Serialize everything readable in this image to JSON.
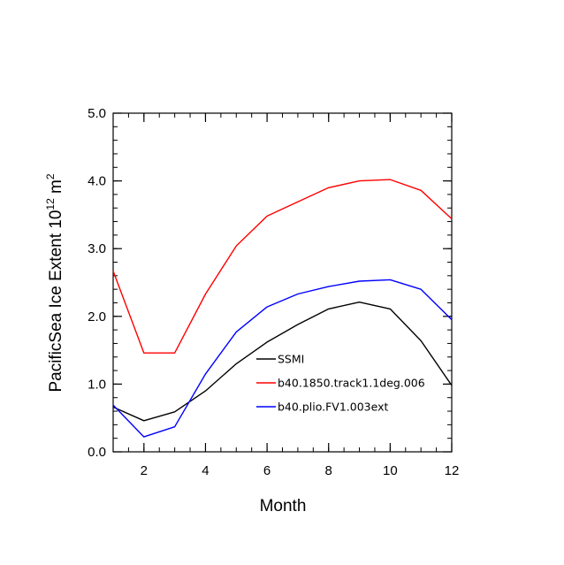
{
  "chart_data": {
    "type": "line",
    "xlabel": "Month",
    "ylabel": "PacificSea Ice Extent 10",
    "ylabel_exp": "12",
    "ylabel_unit": " m",
    "ylabel_unit_exp": "2",
    "xlim": [
      1,
      12
    ],
    "ylim": [
      0,
      5
    ],
    "xticks": [
      2,
      4,
      6,
      8,
      10,
      12
    ],
    "xtick_labels": [
      "2",
      "4",
      "6",
      "8",
      "10",
      "12"
    ],
    "yticks": [
      0,
      1,
      2,
      3,
      4,
      5
    ],
    "ytick_labels": [
      "0.0",
      "1.0",
      "2.0",
      "3.0",
      "4.0",
      "5.0"
    ],
    "grid": false,
    "legend_position": "lower-right",
    "x": [
      1,
      2,
      3,
      4,
      5,
      6,
      7,
      8,
      9,
      10,
      11,
      12
    ],
    "series": [
      {
        "name": "SSMI",
        "color": "#000000",
        "values": [
          0.66,
          0.46,
          0.59,
          0.9,
          1.3,
          1.62,
          1.88,
          2.11,
          2.21,
          2.11,
          1.64,
          0.98
        ]
      },
      {
        "name": "b40.1850.track1.1deg.006",
        "color": "#ff0000",
        "values": [
          2.67,
          1.46,
          1.46,
          2.33,
          3.04,
          3.48,
          3.69,
          3.9,
          4.0,
          4.02,
          3.86,
          3.44
        ]
      },
      {
        "name": "b40.plio.FV1.003ext",
        "color": "#0000ff",
        "values": [
          0.69,
          0.22,
          0.37,
          1.15,
          1.77,
          2.14,
          2.33,
          2.44,
          2.52,
          2.54,
          2.4,
          1.95
        ]
      }
    ]
  }
}
